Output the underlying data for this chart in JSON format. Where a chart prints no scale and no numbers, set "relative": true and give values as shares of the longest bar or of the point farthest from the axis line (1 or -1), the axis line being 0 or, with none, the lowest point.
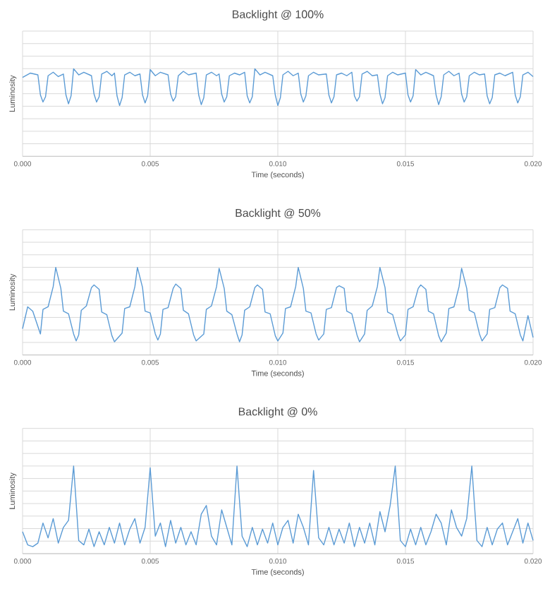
{
  "chart_data": [
    {
      "type": "line",
      "title": "Backlight @ 100%",
      "xlabel": "Time (seconds)",
      "ylabel": "Luminosity",
      "relative": true,
      "grid": true,
      "tick_labels": "x",
      "xlim": [
        0,
        0.02
      ],
      "xticks": [
        {
          "value": 0,
          "label": "0.000"
        },
        {
          "value": 0.005,
          "label": "0.005"
        },
        {
          "value": 0.01,
          "label": "0.010"
        },
        {
          "value": 0.015,
          "label": "0.015"
        },
        {
          "value": 0.02,
          "label": "0.020"
        }
      ],
      "series": [
        {
          "color": "#5b9bd5",
          "x": [
            0,
            0.0003,
            0.0006,
            0.0007,
            0.0008,
            0.0009,
            0.001,
            0.0012,
            0.0014,
            0.0016,
            0.0017,
            0.0018,
            0.0019,
            0.002,
            0.0022,
            0.0024,
            0.0027,
            0.0028,
            0.0029,
            0.003,
            0.0031,
            0.0033,
            0.0035,
            0.0036,
            0.0037,
            0.0038,
            0.0039,
            0.004,
            0.0042,
            0.0044,
            0.0046,
            0.0047,
            0.0048,
            0.0049,
            0.005,
            0.0052,
            0.0054,
            0.0057,
            0.0058,
            0.0059,
            0.006,
            0.0061,
            0.0063,
            0.0065,
            0.0068,
            0.0069,
            0.007,
            0.0071,
            0.0072,
            0.0074,
            0.0076,
            0.0077,
            0.0078,
            0.0079,
            0.008,
            0.0081,
            0.0083,
            0.0085,
            0.0087,
            0.0088,
            0.0089,
            0.009,
            0.0091,
            0.0093,
            0.0095,
            0.0098,
            0.0099,
            0.01,
            0.0101,
            0.0102,
            0.0104,
            0.0106,
            0.0108,
            0.0109,
            0.011,
            0.0111,
            0.0112,
            0.0114,
            0.0116,
            0.0119,
            0.012,
            0.0121,
            0.0122,
            0.0123,
            0.0125,
            0.0127,
            0.0129,
            0.013,
            0.0131,
            0.0132,
            0.0133,
            0.0135,
            0.0137,
            0.0139,
            0.014,
            0.0141,
            0.0142,
            0.0143,
            0.0145,
            0.0147,
            0.015,
            0.0151,
            0.0152,
            0.0153,
            0.0154,
            0.0156,
            0.0158,
            0.0161,
            0.0162,
            0.0163,
            0.0164,
            0.0165,
            0.0167,
            0.0169,
            0.0171,
            0.0172,
            0.0173,
            0.0174,
            0.0175,
            0.0177,
            0.0179,
            0.0181,
            0.0182,
            0.0183,
            0.0184,
            0.0185,
            0.0187,
            0.0189,
            0.0192,
            0.0193,
            0.0194,
            0.0195,
            0.0196,
            0.0198,
            0.02
          ],
          "values": [
            0.9,
            0.95,
            0.93,
            0.7,
            0.62,
            0.68,
            0.92,
            0.96,
            0.91,
            0.94,
            0.7,
            0.6,
            0.69,
            1.0,
            0.93,
            0.96,
            0.92,
            0.71,
            0.62,
            0.68,
            0.94,
            0.97,
            0.92,
            0.95,
            0.69,
            0.58,
            0.67,
            0.93,
            0.96,
            0.92,
            0.94,
            0.7,
            0.61,
            0.69,
            0.99,
            0.92,
            0.96,
            0.93,
            0.71,
            0.63,
            0.68,
            0.92,
            0.97,
            0.93,
            0.95,
            0.7,
            0.59,
            0.67,
            0.93,
            0.96,
            0.92,
            0.94,
            0.71,
            0.62,
            0.68,
            0.92,
            0.95,
            0.93,
            0.96,
            0.69,
            0.61,
            0.68,
            1.0,
            0.93,
            0.96,
            0.92,
            0.7,
            0.58,
            0.67,
            0.93,
            0.97,
            0.92,
            0.95,
            0.71,
            0.62,
            0.69,
            0.92,
            0.96,
            0.93,
            0.94,
            0.7,
            0.61,
            0.68,
            0.93,
            0.95,
            0.92,
            0.96,
            0.69,
            0.63,
            0.68,
            0.94,
            0.97,
            0.92,
            0.93,
            0.71,
            0.6,
            0.67,
            0.92,
            0.96,
            0.93,
            0.95,
            0.7,
            0.62,
            0.69,
            0.99,
            0.93,
            0.96,
            0.92,
            0.7,
            0.59,
            0.68,
            0.93,
            0.97,
            0.92,
            0.95,
            0.71,
            0.62,
            0.68,
            0.92,
            0.96,
            0.93,
            0.94,
            0.69,
            0.6,
            0.67,
            0.93,
            0.95,
            0.92,
            0.96,
            0.7,
            0.61,
            0.68,
            0.93,
            0.96,
            0.91
          ]
        }
      ]
    },
    {
      "type": "line",
      "title": "Backlight @ 50%",
      "xlabel": "Time (seconds)",
      "ylabel": "Luminosity",
      "relative": true,
      "grid": true,
      "tick_labels": "x",
      "xlim": [
        0,
        0.02
      ],
      "xticks": [
        {
          "value": 0,
          "label": "0.000"
        },
        {
          "value": 0.005,
          "label": "0.005"
        },
        {
          "value": 0.01,
          "label": "0.010"
        },
        {
          "value": 0.015,
          "label": "0.015"
        },
        {
          "value": 0.02,
          "label": "0.020"
        }
      ],
      "series": [
        {
          "color": "#5b9bd5",
          "x": [
            0,
            0.0002,
            0.0004,
            0.0007,
            0.0008,
            0.001,
            0.0012,
            0.0013,
            0.0015,
            0.0016,
            0.0018,
            0.002,
            0.0021,
            0.0022,
            0.0023,
            0.0025,
            0.0027,
            0.0028,
            0.003,
            0.0031,
            0.0033,
            0.0035,
            0.0036,
            0.0039,
            0.004,
            0.0042,
            0.0044,
            0.0045,
            0.0047,
            0.0048,
            0.005,
            0.0052,
            0.0053,
            0.0054,
            0.0055,
            0.0057,
            0.0059,
            0.006,
            0.0062,
            0.0063,
            0.0065,
            0.0067,
            0.0068,
            0.0071,
            0.0072,
            0.0074,
            0.0076,
            0.0077,
            0.0079,
            0.008,
            0.0082,
            0.0084,
            0.0085,
            0.0086,
            0.0087,
            0.0089,
            0.0091,
            0.0092,
            0.0094,
            0.0095,
            0.0097,
            0.0099,
            0.01,
            0.0102,
            0.0103,
            0.0105,
            0.0107,
            0.0108,
            0.011,
            0.0111,
            0.0113,
            0.0115,
            0.0116,
            0.0118,
            0.0119,
            0.0121,
            0.0123,
            0.0124,
            0.0126,
            0.0127,
            0.0129,
            0.0131,
            0.0132,
            0.0134,
            0.0135,
            0.0137,
            0.0139,
            0.014,
            0.0142,
            0.0143,
            0.0145,
            0.0147,
            0.0148,
            0.015,
            0.0151,
            0.0153,
            0.0155,
            0.0156,
            0.0158,
            0.0159,
            0.0161,
            0.0163,
            0.0164,
            0.0166,
            0.0167,
            0.0169,
            0.0171,
            0.0172,
            0.0174,
            0.0175,
            0.0177,
            0.0179,
            0.018,
            0.0182,
            0.0183,
            0.0185,
            0.0187,
            0.0188,
            0.019,
            0.0191,
            0.0193,
            0.0195,
            0.0196,
            0.0198,
            0.02
          ],
          "values": [
            0.3,
            0.55,
            0.5,
            0.24,
            0.52,
            0.55,
            0.78,
            1.0,
            0.76,
            0.5,
            0.47,
            0.24,
            0.16,
            0.23,
            0.51,
            0.56,
            0.77,
            0.8,
            0.75,
            0.49,
            0.46,
            0.22,
            0.15,
            0.25,
            0.53,
            0.55,
            0.78,
            1.0,
            0.77,
            0.5,
            0.48,
            0.24,
            0.17,
            0.24,
            0.52,
            0.54,
            0.76,
            0.81,
            0.76,
            0.51,
            0.47,
            0.23,
            0.16,
            0.24,
            0.52,
            0.56,
            0.78,
            0.99,
            0.76,
            0.5,
            0.46,
            0.24,
            0.15,
            0.23,
            0.51,
            0.55,
            0.77,
            0.8,
            0.75,
            0.49,
            0.47,
            0.22,
            0.16,
            0.25,
            0.53,
            0.55,
            0.78,
            1.0,
            0.76,
            0.5,
            0.48,
            0.24,
            0.17,
            0.24,
            0.52,
            0.54,
            0.77,
            0.79,
            0.76,
            0.5,
            0.47,
            0.23,
            0.15,
            0.24,
            0.51,
            0.56,
            0.78,
            1.0,
            0.77,
            0.49,
            0.46,
            0.24,
            0.16,
            0.23,
            0.52,
            0.55,
            0.76,
            0.8,
            0.75,
            0.5,
            0.47,
            0.22,
            0.15,
            0.25,
            0.53,
            0.55,
            0.78,
            0.99,
            0.76,
            0.51,
            0.48,
            0.24,
            0.16,
            0.24,
            0.52,
            0.54,
            0.77,
            0.8,
            0.76,
            0.5,
            0.47,
            0.23,
            0.16,
            0.45,
            0.2
          ]
        }
      ]
    },
    {
      "type": "line",
      "title": "Backlight @ 0%",
      "xlabel": "Time (seconds)",
      "ylabel": "Luminosity",
      "relative": true,
      "grid": true,
      "tick_labels": "x",
      "xlim": [
        0,
        0.02
      ],
      "xticks": [
        {
          "value": 0,
          "label": "0.000"
        },
        {
          "value": 0.005,
          "label": "0.005"
        },
        {
          "value": 0.01,
          "label": "0.010"
        },
        {
          "value": 0.015,
          "label": "0.015"
        },
        {
          "value": 0.02,
          "label": "0.020"
        }
      ],
      "series": [
        {
          "color": "#5b9bd5",
          "x": [
            0,
            0.0002,
            0.0004,
            0.0006,
            0.0008,
            0.001,
            0.0012,
            0.0014,
            0.0016,
            0.0018,
            0.002,
            0.0022,
            0.0024,
            0.0026,
            0.0028,
            0.003,
            0.0032,
            0.0034,
            0.0036,
            0.0038,
            0.004,
            0.0042,
            0.0044,
            0.0046,
            0.0048,
            0.005,
            0.0052,
            0.0054,
            0.0056,
            0.0058,
            0.006,
            0.0062,
            0.0064,
            0.0066,
            0.0068,
            0.007,
            0.0072,
            0.0074,
            0.0076,
            0.0078,
            0.008,
            0.0082,
            0.0084,
            0.0086,
            0.0088,
            0.009,
            0.0092,
            0.0094,
            0.0096,
            0.0098,
            0.01,
            0.0102,
            0.0104,
            0.0106,
            0.0108,
            0.011,
            0.0112,
            0.0114,
            0.0116,
            0.0118,
            0.012,
            0.0122,
            0.0124,
            0.0126,
            0.0128,
            0.013,
            0.0132,
            0.0134,
            0.0136,
            0.0138,
            0.014,
            0.0142,
            0.0144,
            0.0146,
            0.0148,
            0.015,
            0.0152,
            0.0154,
            0.0156,
            0.0158,
            0.016,
            0.0162,
            0.0164,
            0.0166,
            0.0168,
            0.017,
            0.0172,
            0.0174,
            0.0176,
            0.0178,
            0.018,
            0.0182,
            0.0184,
            0.0186,
            0.0188,
            0.019,
            0.0192,
            0.0194,
            0.0196,
            0.0198,
            0.02
          ],
          "values": [
            0.25,
            0.1,
            0.08,
            0.12,
            0.35,
            0.18,
            0.4,
            0.12,
            0.3,
            0.38,
            1.0,
            0.15,
            0.1,
            0.28,
            0.08,
            0.25,
            0.1,
            0.3,
            0.12,
            0.35,
            0.1,
            0.28,
            0.4,
            0.12,
            0.3,
            0.98,
            0.2,
            0.35,
            0.08,
            0.38,
            0.12,
            0.3,
            0.1,
            0.25,
            0.1,
            0.45,
            0.55,
            0.2,
            0.1,
            0.5,
            0.3,
            0.1,
            1.0,
            0.2,
            0.08,
            0.3,
            0.1,
            0.28,
            0.12,
            0.35,
            0.1,
            0.3,
            0.38,
            0.12,
            0.45,
            0.3,
            0.1,
            0.95,
            0.18,
            0.1,
            0.3,
            0.1,
            0.28,
            0.12,
            0.35,
            0.08,
            0.3,
            0.12,
            0.35,
            0.1,
            0.48,
            0.25,
            0.55,
            1.0,
            0.15,
            0.08,
            0.28,
            0.1,
            0.3,
            0.1,
            0.25,
            0.45,
            0.35,
            0.1,
            0.5,
            0.3,
            0.2,
            0.4,
            1.0,
            0.15,
            0.08,
            0.3,
            0.1,
            0.28,
            0.35,
            0.1,
            0.25,
            0.4,
            0.12,
            0.35,
            0.15
          ]
        }
      ]
    }
  ]
}
